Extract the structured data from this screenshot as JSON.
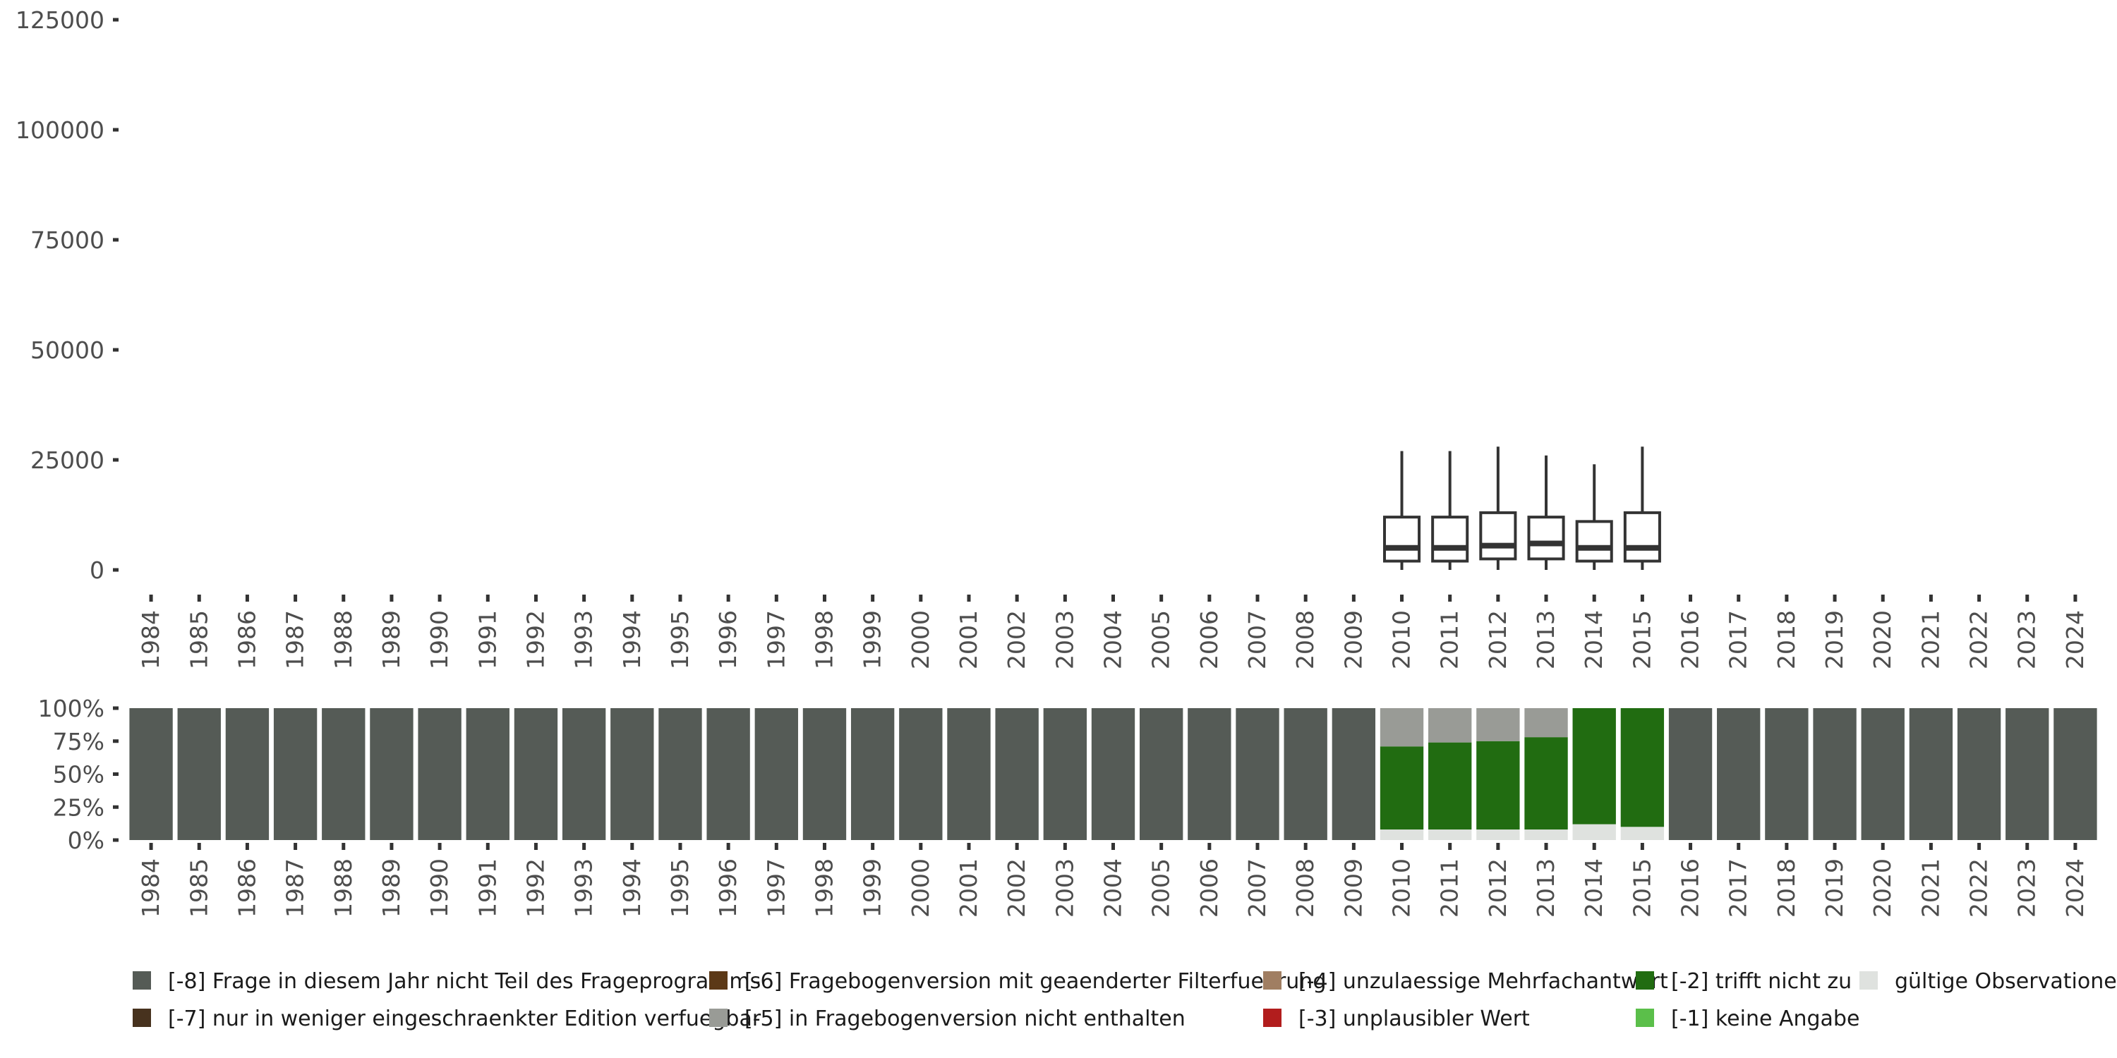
{
  "chart_data": [
    {
      "type": "boxplot",
      "title": "",
      "xlabel": "",
      "ylabel": "",
      "ylim": [
        0,
        125000
      ],
      "yticks": [
        0,
        25000,
        50000,
        75000,
        100000,
        125000
      ],
      "ytick_labels": [
        "0",
        "25000",
        "50000",
        "75000",
        "100000",
        "125000"
      ],
      "x": [
        "1984",
        "1985",
        "1986",
        "1987",
        "1988",
        "1989",
        "1990",
        "1991",
        "1992",
        "1993",
        "1994",
        "1995",
        "1996",
        "1997",
        "1998",
        "1999",
        "2000",
        "2001",
        "2002",
        "2003",
        "2004",
        "2005",
        "2006",
        "2007",
        "2008",
        "2009",
        "2010",
        "2011",
        "2012",
        "2013",
        "2014",
        "2015",
        "2016",
        "2017",
        "2018",
        "2019",
        "2020",
        "2021",
        "2022",
        "2023",
        "2024"
      ],
      "boxes": [
        {
          "year": "2010",
          "min": 0,
          "q1": 2000,
          "median": 5000,
          "q3": 12000,
          "max": 27000
        },
        {
          "year": "2011",
          "min": 0,
          "q1": 2000,
          "median": 5000,
          "q3": 12000,
          "max": 27000
        },
        {
          "year": "2012",
          "min": 0,
          "q1": 2500,
          "median": 5500,
          "q3": 13000,
          "max": 28000
        },
        {
          "year": "2013",
          "min": 0,
          "q1": 2500,
          "median": 6000,
          "q3": 12000,
          "max": 26000
        },
        {
          "year": "2014",
          "min": 0,
          "q1": 2000,
          "median": 5000,
          "q3": 11000,
          "max": 24000
        },
        {
          "year": "2015",
          "min": 0,
          "q1": 2000,
          "median": 5000,
          "q3": 13000,
          "max": 28000
        }
      ]
    },
    {
      "type": "stacked-bar",
      "title": "",
      "xlabel": "",
      "ylabel": "",
      "ylim": [
        0,
        100
      ],
      "yticks": [
        0,
        25,
        50,
        75,
        100
      ],
      "ytick_labels": [
        "0%",
        "25%",
        "50%",
        "75%",
        "100%"
      ],
      "categories": [
        "1984",
        "1985",
        "1986",
        "1987",
        "1988",
        "1989",
        "1990",
        "1991",
        "1992",
        "1993",
        "1994",
        "1995",
        "1996",
        "1997",
        "1998",
        "1999",
        "2000",
        "2001",
        "2002",
        "2003",
        "2004",
        "2005",
        "2006",
        "2007",
        "2008",
        "2009",
        "2010",
        "2011",
        "2012",
        "2013",
        "2014",
        "2015",
        "2016",
        "2017",
        "2018",
        "2019",
        "2020",
        "2021",
        "2022",
        "2023",
        "2024"
      ],
      "series": [
        {
          "name": "gültige Observationen",
          "color": "#dfe2df",
          "values": [
            0,
            0,
            0,
            0,
            0,
            0,
            0,
            0,
            0,
            0,
            0,
            0,
            0,
            0,
            0,
            0,
            0,
            0,
            0,
            0,
            0,
            0,
            0,
            0,
            0,
            0,
            8,
            8,
            8,
            8,
            12,
            10,
            0,
            0,
            0,
            0,
            0,
            0,
            0,
            0,
            0
          ]
        },
        {
          "name": "[-2] trifft nicht zu",
          "color": "#216c11",
          "values": [
            0,
            0,
            0,
            0,
            0,
            0,
            0,
            0,
            0,
            0,
            0,
            0,
            0,
            0,
            0,
            0,
            0,
            0,
            0,
            0,
            0,
            0,
            0,
            0,
            0,
            0,
            63,
            66,
            67,
            70,
            88,
            90,
            0,
            0,
            0,
            0,
            0,
            0,
            0,
            0,
            0
          ]
        },
        {
          "name": "[-5] in Fragebogenversion nicht enthalten",
          "color": "#999b96",
          "values": [
            0,
            0,
            0,
            0,
            0,
            0,
            0,
            0,
            0,
            0,
            0,
            0,
            0,
            0,
            0,
            0,
            0,
            0,
            0,
            0,
            0,
            0,
            0,
            0,
            0,
            0,
            29,
            26,
            25,
            22,
            0,
            0,
            0,
            0,
            0,
            0,
            0,
            0,
            0,
            0,
            0
          ]
        },
        {
          "name": "[-8] Frage in diesem Jahr nicht Teil des Frageprogramms",
          "color": "#555b56",
          "values": [
            100,
            100,
            100,
            100,
            100,
            100,
            100,
            100,
            100,
            100,
            100,
            100,
            100,
            100,
            100,
            100,
            100,
            100,
            100,
            100,
            100,
            100,
            100,
            100,
            100,
            100,
            0,
            0,
            0,
            0,
            0,
            0,
            100,
            100,
            100,
            100,
            100,
            100,
            100,
            100,
            100
          ]
        }
      ]
    }
  ],
  "legend": [
    {
      "label": "[-8] Frage in diesem Jahr nicht Teil des Frageprogramms",
      "color": "#555b56"
    },
    {
      "label": "[-7] nur in weniger eingeschraenkter Edition verfuegbar",
      "color": "#47321e"
    },
    {
      "label": "[-6] Fragebogenversion mit geaenderter Filterfuehrung",
      "color": "#5c3917"
    },
    {
      "label": "[-5] in Fragebogenversion nicht enthalten",
      "color": "#999b96"
    },
    {
      "label": "[-4] unzulaessige Mehrfachantwort",
      "color": "#a07e62"
    },
    {
      "label": "[-3] unplausibler Wert",
      "color": "#b21d1d"
    },
    {
      "label": "[-2] trifft nicht zu",
      "color": "#216c11"
    },
    {
      "label": "[-1] keine Angabe",
      "color": "#5bbf4a"
    },
    {
      "label": "gültige Observationen",
      "color": "#dfe2df"
    }
  ]
}
